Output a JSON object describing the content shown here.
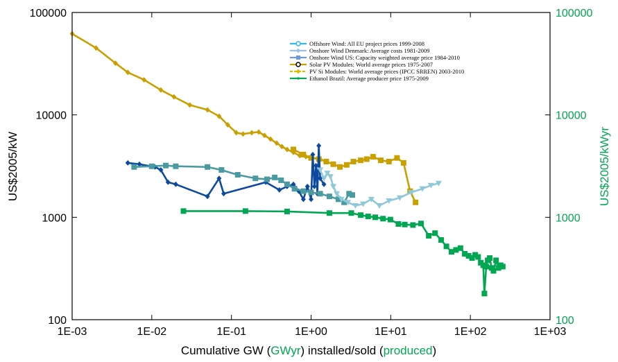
{
  "colors": {
    "right_axis": "#00a651",
    "offshore_wind": "#2fb8e0",
    "onshore_denmark": "#9fbfe0",
    "onshore_us": "#6f9bd0",
    "solar_pv": "#c8a000",
    "pv_si": "#e0b800",
    "ethanol": "#00a651"
  },
  "chart_data": {
    "type": "scatter",
    "x_scale": "log",
    "y_scale": "log",
    "xlim": [
      0.001,
      1000
    ],
    "ylim": [
      100,
      100000
    ],
    "y2lim": [
      100,
      100000
    ],
    "grid": false,
    "legend_position": "top-center",
    "x_ticks": [
      "1E-03",
      "1E-02",
      "1E-01",
      "1E+00",
      "1E+01",
      "1E+02",
      "1E+03"
    ],
    "y_ticks": [
      "100",
      "1000",
      "10000",
      "100000"
    ],
    "y2_ticks": [
      "100",
      "1000",
      "10000",
      "100000"
    ],
    "ylabel": "US$2005/kW",
    "y2label": "US$2005/kWyr",
    "xlabel_parts": [
      "Cumulative GW (",
      "GWyr",
      ") installed/sold (",
      "produced",
      ")"
    ],
    "legend": [
      "Offshore Wind: All EU project prices 1999-2008",
      "Onshore Wind Denmark: Average costs 1981-2009",
      "Onshore Wind US: Capacity weighted average price 1984-2010",
      "Solar PV Modules:  World average prices 1975-2007",
      "PV Si Modules: World average prices (IPCC SRREN) 2003-2010",
      "Ethanol Brazil: Average producer price 1975-2009"
    ],
    "series": [
      {
        "color": "#c8a000",
        "marker": "diamond",
        "x": [
          0.001,
          0.002,
          0.0035,
          0.005,
          0.008,
          0.013,
          0.019,
          0.03,
          0.05,
          0.07,
          0.09,
          0.115,
          0.14,
          0.18,
          0.22,
          0.26,
          0.31,
          0.37,
          0.43,
          0.5,
          0.6,
          0.72,
          0.86,
          1.05,
          1.3
        ],
        "y": [
          62000,
          45000,
          32000,
          26000,
          22000,
          17500,
          15000,
          12500,
          11200,
          9700,
          8000,
          6700,
          6500,
          6700,
          6800,
          6300,
          5800,
          5300,
          4900,
          4600,
          4300,
          4000,
          3900,
          3800,
          3700
        ]
      },
      {
        "color": "#c8a000",
        "marker": "square",
        "x": [
          0.6,
          0.8,
          1.0,
          1.25,
          1.55,
          1.9,
          2.3,
          2.8,
          3.4,
          4.2,
          5.0,
          6.0,
          7.5,
          9.5,
          12,
          14.5,
          17.5,
          20.5
        ],
        "y": [
          4600,
          4100,
          3800,
          3700,
          3500,
          3300,
          3100,
          3250,
          3500,
          3600,
          3700,
          3900,
          3600,
          3500,
          3800,
          3400,
          1800,
          1400
        ]
      },
      {
        "color": "#0d4a9e",
        "marker": "diamond",
        "x": [
          0.005,
          0.007,
          0.011,
          0.013,
          0.016,
          0.02,
          0.05,
          0.07,
          0.08,
          0.27,
          0.4,
          0.5,
          0.6,
          0.7,
          0.8,
          0.9,
          1.0,
          1.05,
          1.1,
          1.15,
          1.2,
          1.25,
          1.3,
          1.45
        ],
        "y": [
          3400,
          3300,
          3100,
          2900,
          2200,
          2100,
          1600,
          2400,
          1700,
          2200,
          1850,
          2000,
          2100,
          1800,
          1500,
          2000,
          1500,
          4100,
          2000,
          3200,
          1700,
          5000,
          2400,
          2100
        ]
      },
      {
        "color": "#4a9aa0",
        "marker": "square",
        "x": [
          0.006,
          0.01,
          0.015,
          0.02,
          0.05,
          0.075,
          0.12,
          0.2,
          0.28,
          0.35,
          0.42,
          0.5,
          0.62,
          0.8,
          1.0,
          1.3,
          1.7,
          2.2,
          2.6,
          3.0,
          3.3
        ],
        "y": [
          3100,
          3150,
          3200,
          3150,
          3100,
          2900,
          2600,
          2400,
          2350,
          2450,
          2300,
          2100,
          1900,
          1800,
          1750,
          1700,
          1600,
          1500,
          1400,
          1700,
          1650
        ]
      },
      {
        "color": "#8fc8d8",
        "marker": "triangle",
        "x": [
          1.3,
          1.45,
          1.6,
          1.75,
          1.9,
          2.1,
          2.4,
          2.9,
          3.6,
          4.5,
          5.7,
          7.2,
          9.5,
          13,
          18,
          25,
          32,
          40
        ],
        "y": [
          2900,
          2400,
          2700,
          2500,
          2000,
          1700,
          1500,
          1400,
          1300,
          1350,
          1500,
          1300,
          1450,
          1550,
          1750,
          1900,
          2050,
          2150
        ]
      },
      {
        "color": "#00a651",
        "marker": "square",
        "x": [
          0.025,
          0.15,
          0.5,
          1.7,
          3.2,
          4.2,
          5.2,
          6.4,
          8.0,
          9.9,
          12.5,
          15.0,
          19.0,
          24.0,
          30.0,
          36.0,
          43.0,
          50.0,
          58.0,
          66.0,
          75.0,
          85.0,
          95.0,
          105.0,
          115.0,
          125.0,
          135.0,
          145.0,
          150.0,
          158.0,
          165.0,
          175.0,
          185.0,
          195.0,
          210.0,
          225.0,
          240.0,
          255.0
        ],
        "y": [
          1150,
          1150,
          1140,
          1100,
          1100,
          1050,
          1020,
          1000,
          970,
          950,
          860,
          850,
          840,
          870,
          660,
          700,
          600,
          520,
          460,
          480,
          500,
          440,
          420,
          400,
          430,
          410,
          360,
          340,
          180,
          330,
          380,
          400,
          320,
          300,
          380,
          320,
          340,
          330
        ]
      }
    ]
  }
}
